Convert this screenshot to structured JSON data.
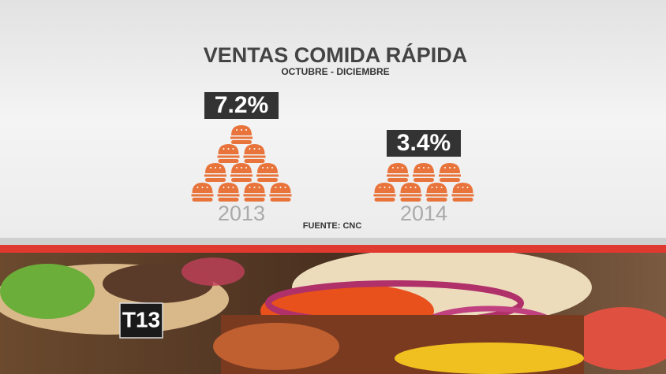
{
  "chart_data": {
    "type": "pictogram",
    "title": "VENTAS COMIDA RÁPIDA",
    "subtitle": "OCTUBRE - DICIEMBRE",
    "categories": [
      "2013",
      "2014"
    ],
    "values": [
      7.2,
      3.4
    ],
    "value_labels": [
      "7.2%",
      "3.4%"
    ],
    "color": "#e8743b",
    "source": "FUENTE: CNC"
  },
  "channel_logo": "T13"
}
